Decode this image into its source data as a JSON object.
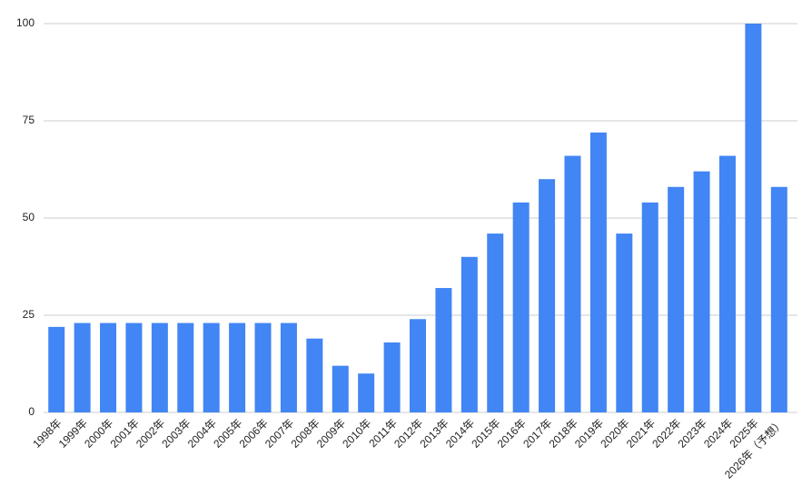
{
  "chart_data": {
    "type": "bar",
    "categories": [
      "1998年",
      "1999年",
      "2000年",
      "2001年",
      "2002年",
      "2003年",
      "2004年",
      "2005年",
      "2006年",
      "2007年",
      "2008年",
      "2009年",
      "2010年",
      "2011年",
      "2012年",
      "2013年",
      "2014年",
      "2015年",
      "2016年",
      "2017年",
      "2018年",
      "2019年",
      "2020年",
      "2021年",
      "2022年",
      "2023年",
      "2024年",
      "2025年",
      "2026年（予想）"
    ],
    "values": [
      22,
      23,
      23,
      23,
      23,
      23,
      23,
      23,
      23,
      23,
      19,
      12,
      10,
      18,
      24,
      32,
      40,
      46,
      54,
      60,
      66,
      72,
      46,
      54,
      58,
      62,
      66,
      100,
      58
    ],
    "color": "#4285f4",
    "ylim": [
      0,
      100
    ],
    "yticks": [
      0,
      25,
      50,
      75,
      100
    ],
    "grid": true
  }
}
